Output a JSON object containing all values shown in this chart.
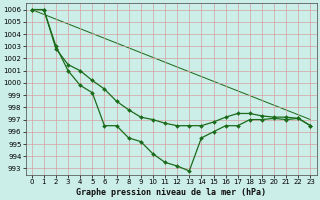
{
  "title": "Graphe pression niveau de la mer (hPa)",
  "bg_color": "#cceee8",
  "grid_color": "#d4a0a0",
  "line_color": "#1a6b1a",
  "xlim": [
    -0.5,
    23.5
  ],
  "ylim": [
    992.5,
    1006.5
  ],
  "yticks": [
    993,
    994,
    995,
    996,
    997,
    998,
    999,
    1000,
    1001,
    1002,
    1003,
    1004,
    1005,
    1006
  ],
  "xticks": [
    0,
    1,
    2,
    3,
    4,
    5,
    6,
    7,
    8,
    9,
    10,
    11,
    12,
    13,
    14,
    15,
    16,
    17,
    18,
    19,
    20,
    21,
    22,
    23
  ],
  "line1_x": [
    0,
    1,
    2,
    3,
    4,
    5,
    6,
    7,
    8,
    9,
    10,
    11,
    12,
    13,
    14,
    15,
    16,
    17,
    18,
    19,
    20,
    21,
    22,
    23
  ],
  "line1_y": [
    1006,
    1006,
    1002.8,
    1001.5,
    1001,
    1000.2,
    999.5,
    998.5,
    997.8,
    997.2,
    997,
    996.7,
    996.5,
    996.5,
    996.5,
    996.8,
    997.2,
    997.5,
    997.5,
    997.3,
    997.2,
    997.2,
    997.1,
    996.5
  ],
  "line2_x": [
    0,
    1,
    2,
    3,
    4,
    5,
    6,
    7,
    8,
    9,
    10,
    11,
    12,
    13,
    14,
    15,
    16,
    17,
    18,
    19,
    20,
    21,
    22,
    23
  ],
  "line2_y": [
    1006,
    1006,
    1003,
    1001,
    999.8,
    999.2,
    996.5,
    996.5,
    995.5,
    995.2,
    994.2,
    993.5,
    993.2,
    992.8,
    995.5,
    996,
    996.5,
    996.5,
    997,
    997,
    997.1,
    997,
    997.1,
    996.5
  ],
  "line3_x": [
    0,
    23
  ],
  "line3_y": [
    1006,
    997
  ],
  "tick_fontsize": 5,
  "xlabel_fontsize": 6,
  "linewidth": 0.9,
  "markersize": 2.0
}
